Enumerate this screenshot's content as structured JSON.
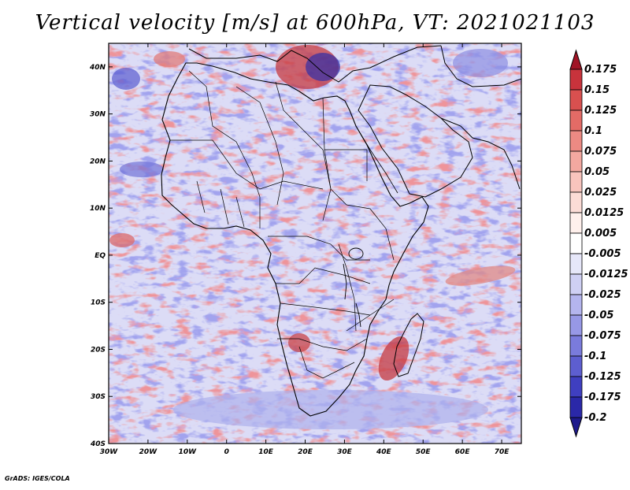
{
  "title": "Vertical velocity [m/s] at 600hPa, VT: 2021021103",
  "footer": "GrADS: IGES/COLA",
  "map": {
    "region": "Africa",
    "lon_range": [
      -30,
      75
    ],
    "lat_range": [
      -40,
      45
    ],
    "x_ticks": [
      {
        "value": -30,
        "label": "30W"
      },
      {
        "value": -20,
        "label": "20W"
      },
      {
        "value": -10,
        "label": "10W"
      },
      {
        "value": 0,
        "label": "0"
      },
      {
        "value": 10,
        "label": "10E"
      },
      {
        "value": 20,
        "label": "20E"
      },
      {
        "value": 30,
        "label": "30E"
      },
      {
        "value": 40,
        "label": "40E"
      },
      {
        "value": 50,
        "label": "50E"
      },
      {
        "value": 60,
        "label": "60E"
      },
      {
        "value": 70,
        "label": "70E"
      }
    ],
    "y_ticks": [
      {
        "value": 40,
        "label": "40N"
      },
      {
        "value": 30,
        "label": "30N"
      },
      {
        "value": 20,
        "label": "20N"
      },
      {
        "value": 10,
        "label": "10N"
      },
      {
        "value": 0,
        "label": "EQ"
      },
      {
        "value": -10,
        "label": "10S"
      },
      {
        "value": -20,
        "label": "20S"
      },
      {
        "value": -30,
        "label": "30S"
      },
      {
        "value": -40,
        "label": "40S"
      }
    ]
  },
  "colorbar": {
    "levels": [
      {
        "label": "0.175",
        "color": "#b2182b"
      },
      {
        "label": "0.15",
        "color": "#c8333c"
      },
      {
        "label": "0.125",
        "color": "#d8504f"
      },
      {
        "label": "0.1",
        "color": "#e36b66"
      },
      {
        "label": "0.075",
        "color": "#ec8a83"
      },
      {
        "label": "0.05",
        "color": "#f3a8a0"
      },
      {
        "label": "0.025",
        "color": "#f8c4bd"
      },
      {
        "label": "0.0125",
        "color": "#fcdcd6"
      },
      {
        "label": "0.005",
        "color": "#fff0ec"
      },
      {
        "label": "-0.005",
        "color": "#ffffff"
      },
      {
        "label": "-0.0125",
        "color": "#e6e7f9"
      },
      {
        "label": "-0.025",
        "color": "#cfd0f4"
      },
      {
        "label": "-0.05",
        "color": "#b4b5ee"
      },
      {
        "label": "-0.075",
        "color": "#9798e6"
      },
      {
        "label": "-0.1",
        "color": "#7a7bdc"
      },
      {
        "label": "-0.125",
        "color": "#5d5ed0"
      },
      {
        "label": "-0.175",
        "color": "#3f3fc0"
      },
      {
        "label": "-0.2",
        "color": "#2a28a8"
      }
    ],
    "top_color": "#a01425",
    "bottom_color": "#1e1a8c"
  }
}
